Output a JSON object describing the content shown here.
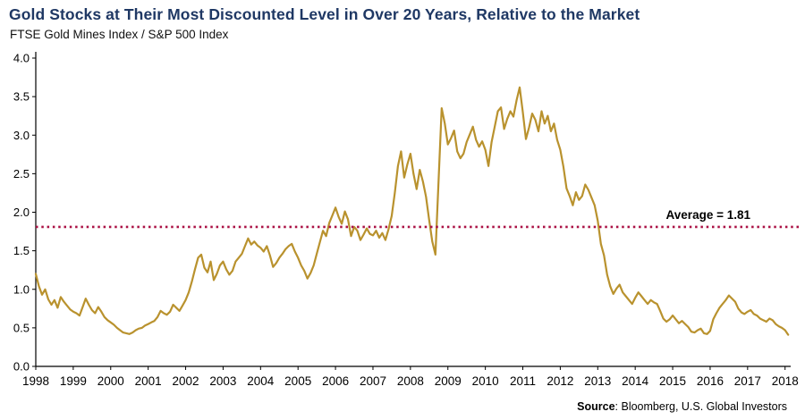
{
  "title": "Gold Stocks at Their Most Discounted Level in Over 20 Years, Relative to the Market",
  "subtitle": "FTSE Gold Mines Index / S&P 500 Index",
  "source": {
    "label": "Source",
    "text": ": Bloomberg, U.S. Global Investors"
  },
  "colors": {
    "title": "#1f3864",
    "line": "#b9922e",
    "average": "#ab1245",
    "axis": "#000000"
  },
  "chart_data": {
    "type": "line",
    "title": "Gold Stocks at Their Most Discounted Level in Over 20 Years, Relative to the Market",
    "subtitle": "FTSE Gold Mines Index / S&P 500 Index",
    "series_name": "FTSE Gold Mines Index / S&P 500 Index",
    "x_start_year": 1998,
    "x_interval": "monthly",
    "values": [
      1.2,
      1.04,
      0.93,
      1.0,
      0.87,
      0.8,
      0.86,
      0.76,
      0.9,
      0.84,
      0.79,
      0.74,
      0.71,
      0.69,
      0.66,
      0.77,
      0.88,
      0.8,
      0.73,
      0.69,
      0.77,
      0.71,
      0.64,
      0.6,
      0.57,
      0.54,
      0.5,
      0.47,
      0.44,
      0.43,
      0.42,
      0.44,
      0.47,
      0.49,
      0.5,
      0.53,
      0.55,
      0.57,
      0.59,
      0.64,
      0.72,
      0.69,
      0.67,
      0.71,
      0.8,
      0.76,
      0.72,
      0.79,
      0.86,
      0.96,
      1.1,
      1.26,
      1.41,
      1.45,
      1.28,
      1.22,
      1.36,
      1.12,
      1.2,
      1.31,
      1.36,
      1.26,
      1.19,
      1.24,
      1.36,
      1.41,
      1.46,
      1.56,
      1.66,
      1.58,
      1.62,
      1.57,
      1.54,
      1.49,
      1.56,
      1.44,
      1.29,
      1.34,
      1.41,
      1.46,
      1.52,
      1.56,
      1.59,
      1.49,
      1.41,
      1.31,
      1.24,
      1.14,
      1.21,
      1.31,
      1.46,
      1.61,
      1.76,
      1.69,
      1.86,
      1.96,
      2.06,
      1.94,
      1.85,
      2.01,
      1.91,
      1.69,
      1.81,
      1.76,
      1.64,
      1.71,
      1.79,
      1.72,
      1.7,
      1.76,
      1.67,
      1.73,
      1.64,
      1.78,
      1.95,
      2.25,
      2.6,
      2.79,
      2.45,
      2.62,
      2.76,
      2.5,
      2.3,
      2.55,
      2.4,
      2.2,
      1.9,
      1.62,
      1.45,
      2.4,
      3.35,
      3.15,
      2.88,
      2.96,
      3.06,
      2.79,
      2.7,
      2.76,
      2.91,
      3.01,
      3.11,
      2.94,
      2.85,
      2.92,
      2.81,
      2.6,
      2.91,
      3.11,
      3.31,
      3.36,
      3.08,
      3.21,
      3.31,
      3.24,
      3.45,
      3.62,
      3.3,
      2.95,
      3.1,
      3.28,
      3.2,
      3.05,
      3.31,
      3.15,
      3.25,
      3.05,
      3.15,
      2.94,
      2.81,
      2.59,
      2.31,
      2.21,
      2.09,
      2.26,
      2.16,
      2.21,
      2.36,
      2.29,
      2.19,
      2.09,
      1.89,
      1.59,
      1.44,
      1.19,
      1.04,
      0.94,
      1.01,
      1.06,
      0.96,
      0.91,
      0.86,
      0.81,
      0.89,
      0.96,
      0.91,
      0.86,
      0.81,
      0.86,
      0.83,
      0.81,
      0.72,
      0.62,
      0.58,
      0.61,
      0.66,
      0.61,
      0.56,
      0.59,
      0.55,
      0.51,
      0.45,
      0.44,
      0.47,
      0.49,
      0.43,
      0.42,
      0.46,
      0.61,
      0.69,
      0.76,
      0.81,
      0.86,
      0.92,
      0.88,
      0.84,
      0.75,
      0.7,
      0.68,
      0.71,
      0.73,
      0.68,
      0.66,
      0.62,
      0.6,
      0.58,
      0.62,
      0.6,
      0.55,
      0.52,
      0.5,
      0.47,
      0.41
    ],
    "y_ticks": [
      "0.0",
      "0.5",
      "1.0",
      "1.5",
      "2.0",
      "2.5",
      "3.0",
      "3.5",
      "4.0"
    ],
    "x_ticks": [
      "1998",
      "1999",
      "2000",
      "2001",
      "2002",
      "2003",
      "2004",
      "2005",
      "2006",
      "2007",
      "2008",
      "2009",
      "2010",
      "2011",
      "2012",
      "2013",
      "2014",
      "2015",
      "2016",
      "2017",
      "2018"
    ],
    "ylim": [
      0,
      4
    ],
    "xlim": [
      1998,
      2018.15
    ],
    "average": 1.81,
    "average_label": "Average = 1.81",
    "grid": false,
    "legend": "none"
  }
}
